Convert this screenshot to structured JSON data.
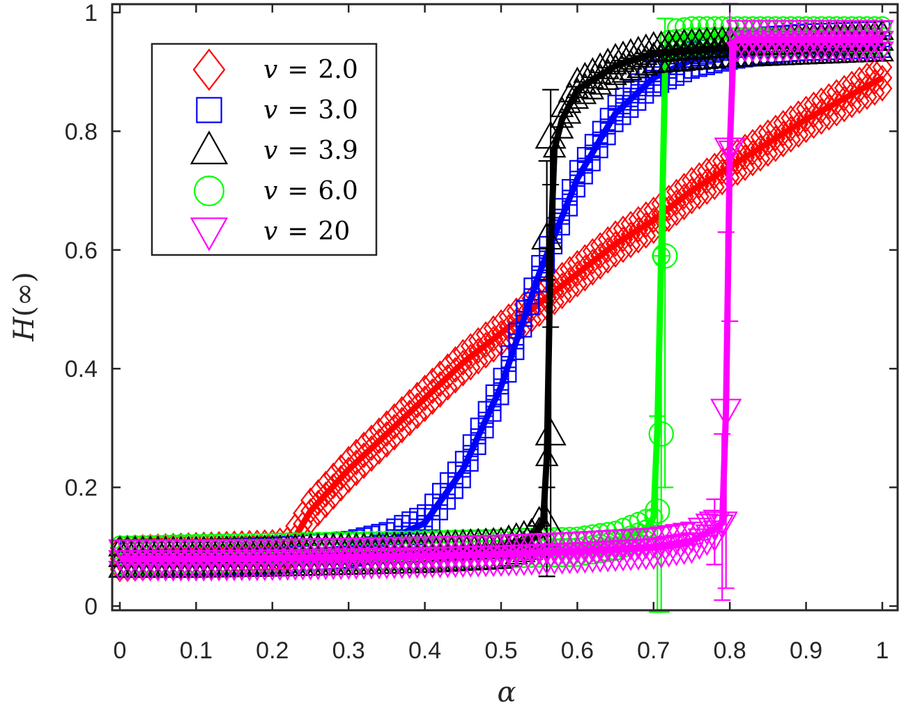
{
  "chart_data": {
    "type": "line",
    "title": "",
    "xlabel": "α",
    "ylabel": "H(∞)",
    "xlim": [
      -0.01,
      1.02
    ],
    "ylim": [
      -0.01,
      1.015
    ],
    "xticks": [
      0,
      0.1,
      0.2,
      0.3,
      0.4,
      0.5,
      0.6,
      0.7,
      0.8,
      0.9,
      1
    ],
    "xtick_labels": [
      "0",
      "0.1",
      "0.2",
      "0.3",
      "0.4",
      "0.5",
      "0.6",
      "0.7",
      "0.8",
      "0.9",
      "1"
    ],
    "yticks": [
      0,
      0.2,
      0.4,
      0.6,
      0.8,
      1
    ],
    "ytick_labels": [
      "0",
      "0.2",
      "0.4",
      "0.6",
      "0.8",
      "1"
    ],
    "grid": false,
    "legend_position": "upper-left",
    "series": [
      {
        "name": "v = 2.0",
        "legend_value": "2.0",
        "color": "#ff0000",
        "marker": "diamond",
        "x": [
          0,
          0.1,
          0.2,
          0.22,
          0.25,
          0.3,
          0.35,
          0.4,
          0.45,
          0.5,
          0.55,
          0.6,
          0.65,
          0.7,
          0.75,
          0.8,
          0.85,
          0.9,
          0.95,
          1.0
        ],
        "values": [
          0.08,
          0.085,
          0.09,
          0.095,
          0.16,
          0.23,
          0.29,
          0.35,
          0.41,
          0.46,
          0.51,
          0.56,
          0.61,
          0.65,
          0.7,
          0.74,
          0.78,
          0.82,
          0.855,
          0.89
        ]
      },
      {
        "name": "v = 3.0",
        "legend_value": "3.0",
        "color": "#0000ff",
        "marker": "square",
        "x": [
          0,
          0.1,
          0.2,
          0.3,
          0.35,
          0.4,
          0.45,
          0.5,
          0.55,
          0.6,
          0.65,
          0.7,
          0.75,
          0.8,
          0.85,
          0.9,
          0.95,
          1.0
        ],
        "values": [
          0.08,
          0.08,
          0.085,
          0.095,
          0.11,
          0.14,
          0.23,
          0.37,
          0.56,
          0.72,
          0.83,
          0.89,
          0.92,
          0.935,
          0.945,
          0.95,
          0.952,
          0.955
        ]
      },
      {
        "name": "v = 3.9",
        "legend_value": "3.9",
        "color": "#000000",
        "marker": "triangle-up",
        "x": [
          0,
          0.1,
          0.2,
          0.3,
          0.4,
          0.5,
          0.54,
          0.555,
          0.56,
          0.565,
          0.57,
          0.58,
          0.6,
          0.65,
          0.7,
          0.8,
          0.9,
          1.0
        ],
        "values": [
          0.08,
          0.08,
          0.082,
          0.085,
          0.088,
          0.095,
          0.11,
          0.14,
          0.25,
          0.6,
          0.77,
          0.82,
          0.87,
          0.91,
          0.93,
          0.94,
          0.945,
          0.95
        ],
        "error_bars": [
          {
            "x": 0.56,
            "y": 0.14,
            "lo": 0.05,
            "hi": 0.2
          },
          {
            "x": 0.565,
            "y": 0.29,
            "lo": 0.1,
            "hi": 0.47
          },
          {
            "x": 0.56,
            "y": 0.62,
            "lo": 0.55,
            "hi": 0.75
          },
          {
            "x": 0.565,
            "y": 0.79,
            "lo": 0.71,
            "hi": 0.87
          }
        ]
      },
      {
        "name": "v = 6.0",
        "legend_value": "6.0",
        "color": "#00ff00",
        "marker": "circle",
        "x": [
          0,
          0.1,
          0.2,
          0.3,
          0.4,
          0.5,
          0.6,
          0.65,
          0.69,
          0.7,
          0.705,
          0.71,
          0.715,
          0.72,
          0.75,
          0.8,
          0.9,
          1.0
        ],
        "values": [
          0.085,
          0.088,
          0.09,
          0.092,
          0.094,
          0.097,
          0.1,
          0.11,
          0.13,
          0.15,
          0.3,
          0.59,
          0.9,
          0.955,
          0.96,
          0.96,
          0.96,
          0.96
        ],
        "error_bars": [
          {
            "x": 0.705,
            "y": 0.16,
            "lo": -0.01,
            "hi": 0.32
          },
          {
            "x": 0.71,
            "y": 0.29,
            "lo": -0.01,
            "hi": 0.59
          },
          {
            "x": 0.715,
            "y": 0.59,
            "lo": 0.2,
            "hi": 0.99
          }
        ]
      },
      {
        "name": "v = 20",
        "legend_value": "20",
        "color": "#ff00ff",
        "marker": "triangle-down",
        "x": [
          0,
          0.1,
          0.2,
          0.3,
          0.4,
          0.5,
          0.6,
          0.7,
          0.75,
          0.78,
          0.79,
          0.795,
          0.8,
          0.805,
          0.81,
          0.85,
          0.9,
          1.0
        ],
        "values": [
          0.08,
          0.08,
          0.081,
          0.083,
          0.085,
          0.088,
          0.093,
          0.1,
          0.11,
          0.13,
          0.14,
          0.33,
          0.77,
          0.95,
          0.955,
          0.955,
          0.955,
          0.955
        ],
        "error_bars": [
          {
            "x": 0.78,
            "y": 0.14,
            "lo": 0.07,
            "hi": 0.18
          },
          {
            "x": 0.79,
            "y": 0.14,
            "lo": 0.01,
            "hi": 0.29
          },
          {
            "x": 0.795,
            "y": 0.33,
            "lo": 0.03,
            "hi": 0.63
          },
          {
            "x": 0.8,
            "y": 0.77,
            "lo": 0.48,
            "hi": 1.015
          }
        ]
      }
    ]
  },
  "axes": {
    "xlabel": "α",
    "ylabel_main": "H",
    "ylabel_paren": "(∞)"
  },
  "legend": {
    "items": [
      {
        "symbol": "v",
        "eq": "=",
        "value": "2.0",
        "color": "#ff0000",
        "marker": "diamond"
      },
      {
        "symbol": "v",
        "eq": "=",
        "value": "3.0",
        "color": "#0000ff",
        "marker": "square"
      },
      {
        "symbol": "v",
        "eq": "=",
        "value": "3.9",
        "color": "#000000",
        "marker": "triangle-up"
      },
      {
        "symbol": "v",
        "eq": "=",
        "value": "6.0",
        "color": "#00ff00",
        "marker": "circle"
      },
      {
        "symbol": "v",
        "eq": "=",
        "value": "20",
        "color": "#ff00ff",
        "marker": "triangle-down"
      }
    ]
  }
}
